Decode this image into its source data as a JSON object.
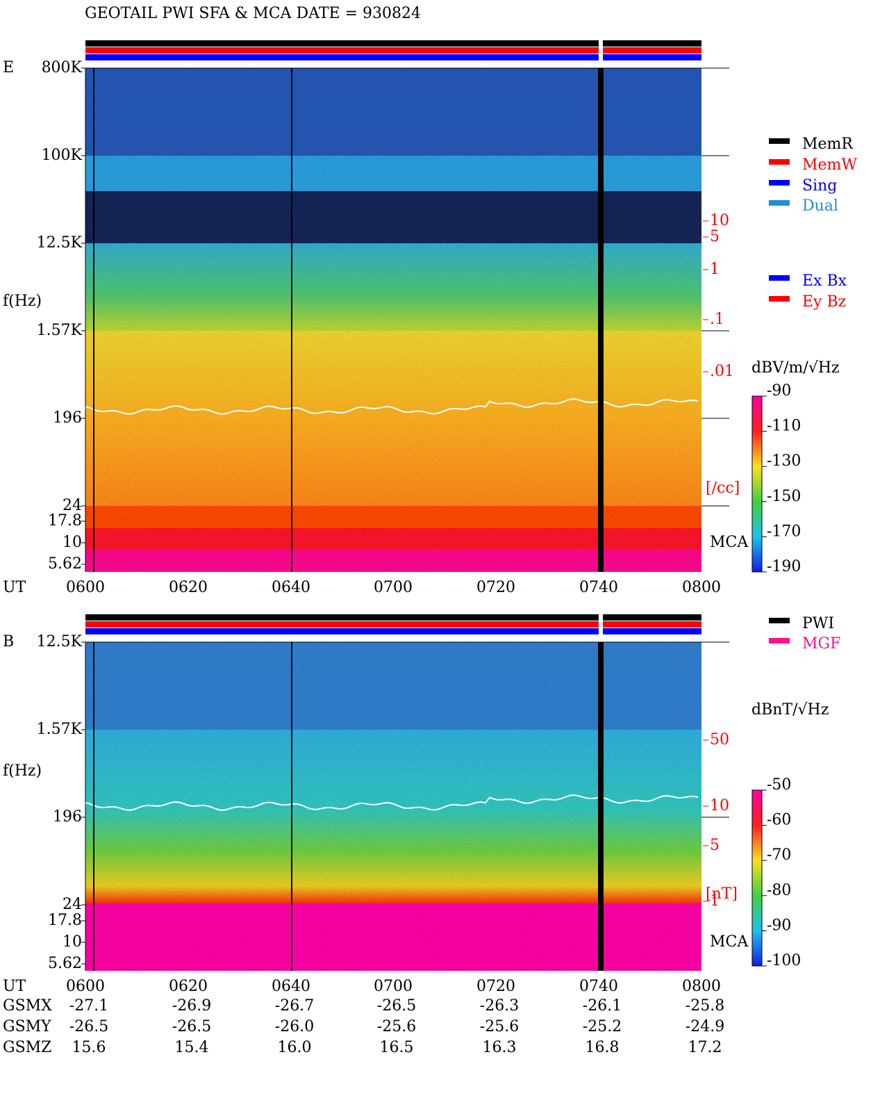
{
  "title": "GEOTAIL   PWI SFA & MCA   DATE = 930824",
  "panels": [
    {
      "label": "E",
      "y_label": "f(Hz)",
      "freq_ticks": [
        "800K",
        "100K",
        "12.5K",
        "1.57K",
        "196",
        "24",
        "17.8",
        "10",
        "5.62"
      ],
      "density_ticks": [
        "10",
        "5",
        "1",
        ".1",
        ".01"
      ],
      "density_unit": "[/cc]",
      "mca": "MCA",
      "time_label": "UT",
      "time_ticks": [
        "0600",
        "0620",
        "0640",
        "0700",
        "0720",
        "0740",
        "0800"
      ],
      "colorbar": {
        "label": "dBV/m/√Hz",
        "lim": [
          -190,
          -90
        ],
        "ticks": [
          -90,
          -110,
          -130,
          -150,
          -170,
          -190
        ]
      }
    },
    {
      "label": "B",
      "y_label": "f(Hz)",
      "freq_ticks": [
        "12.5K",
        "1.57K",
        "196",
        "24",
        "17.8",
        "10",
        "5.62"
      ],
      "density_ticks": [
        "50",
        "10",
        "5",
        "1"
      ],
      "density_unit": "[nT]",
      "mca": "MCA",
      "time_label": "UT",
      "time_ticks": [
        "0600",
        "0620",
        "0640",
        "0700",
        "0720",
        "0740",
        "0800"
      ],
      "colorbar": {
        "label": "dBnT/√Hz",
        "lim": [
          -100,
          -50
        ],
        "ticks": [
          -50,
          -60,
          -70,
          -80,
          -90,
          -100
        ]
      }
    }
  ],
  "legend_mode": [
    {
      "name": "MemR",
      "color": "#000000"
    },
    {
      "name": "MemW",
      "color": "#ff0000"
    },
    {
      "name": "Sing",
      "color": "#0000ff"
    },
    {
      "name": "Dual",
      "color": "#2090d0"
    }
  ],
  "legend_antenna": [
    {
      "name": "Ex Bx",
      "color": "#0000ff"
    },
    {
      "name": "Ey Bz",
      "color": "#ff0000"
    }
  ],
  "legend_source": [
    {
      "name": "PWI",
      "color": "#000000"
    },
    {
      "name": "MGF",
      "color": "#ff1090"
    }
  ],
  "orbit": {
    "rows": [
      {
        "name": "GSMX",
        "values": [
          "-27.1",
          "-26.9",
          "-26.7",
          "-26.5",
          "-26.3",
          "-26.1",
          "-25.8"
        ]
      },
      {
        "name": "GSMY",
        "values": [
          "-26.5",
          "-26.5",
          "-26.0",
          "-25.6",
          "-25.6",
          "-25.2",
          "-24.9"
        ]
      },
      {
        "name": "GSMZ",
        "values": [
          "15.6",
          "15.4",
          "16.0",
          "16.5",
          "16.3",
          "16.8",
          "17.2"
        ]
      }
    ]
  }
}
